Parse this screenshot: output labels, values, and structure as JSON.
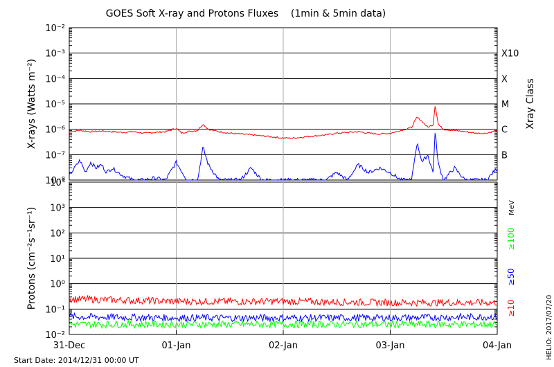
{
  "title": "GOES Soft X-ray and Protons Fluxes    (1min & 5min data)",
  "start_date_label": "Start Date: 2014/12/31 00:00 UT",
  "credit_label": "HELIO: 2017/07/20",
  "colors": {
    "xray_long": "#ff0000",
    "xray_short": "#0000ff",
    "p10": "#ff0000",
    "p50": "#0000ff",
    "p100": "#00ff00",
    "grid": "#000000",
    "day_grid": "#aaaaaa"
  },
  "chart_data": [
    {
      "type": "line",
      "title": "",
      "xlabel": "",
      "ylabel": "X-rays (Watts m⁻²)",
      "y_scale": "log",
      "ylim": [
        1e-08,
        0.01
      ],
      "y_ticks": [
        "10⁻⁸",
        "10⁻⁷",
        "10⁻⁶",
        "10⁻⁵",
        "10⁻⁴",
        "10⁻³",
        "10⁻²"
      ],
      "right_axis_label": "Xray Class",
      "class_labels": [
        {
          "label": "B",
          "value": 1e-07
        },
        {
          "label": "C",
          "value": 1e-06
        },
        {
          "label": "M",
          "value": 1e-05
        },
        {
          "label": "X",
          "value": 0.0001
        },
        {
          "label": "X10",
          "value": 0.001
        }
      ],
      "x_ticks": [
        "31-Dec",
        "01-Jan",
        "02-Jan",
        "03-Jan",
        "04-Jan"
      ],
      "x_range_days": [
        0,
        4
      ],
      "series": [
        {
          "color": "#ff0000",
          "x": [
            0,
            0.1,
            0.2,
            0.3,
            0.4,
            0.5,
            0.6,
            0.7,
            0.8,
            0.9,
            1.0,
            1.05,
            1.1,
            1.2,
            1.25,
            1.3,
            1.4,
            1.5,
            1.6,
            1.7,
            1.8,
            1.9,
            2.0,
            2.1,
            2.2,
            2.3,
            2.4,
            2.5,
            2.6,
            2.7,
            2.8,
            2.9,
            3.0,
            3.1,
            3.2,
            3.25,
            3.3,
            3.35,
            3.4,
            3.42,
            3.45,
            3.5,
            3.6,
            3.7,
            3.8,
            3.9,
            4.0
          ],
          "values": [
            8e-07,
            9e-07,
            8e-07,
            8.5e-07,
            8e-07,
            7.5e-07,
            8e-07,
            7e-07,
            7.5e-07,
            8e-07,
            1.1e-06,
            7e-07,
            8e-07,
            9e-07,
            1.6e-06,
            1e-06,
            8e-07,
            7e-07,
            6.5e-07,
            6e-07,
            5.5e-07,
            5e-07,
            4.5e-07,
            4.5e-07,
            5e-07,
            5.5e-07,
            6e-07,
            7e-07,
            7.5e-07,
            8e-07,
            7e-07,
            6.5e-07,
            7e-07,
            9e-07,
            1.2e-06,
            3e-06,
            2e-06,
            1.2e-06,
            1.5e-06,
            9e-06,
            1.5e-06,
            1e-06,
            9e-07,
            8e-07,
            7e-07,
            7e-07,
            9e-07
          ]
        },
        {
          "color": "#0000ff",
          "x": [
            0,
            0.05,
            0.1,
            0.15,
            0.2,
            0.25,
            0.3,
            0.35,
            0.4,
            0.5,
            0.6,
            0.7,
            0.8,
            0.9,
            1.0,
            1.1,
            1.2,
            1.25,
            1.3,
            1.4,
            1.5,
            1.6,
            1.7,
            1.8,
            1.9,
            2.0,
            2.2,
            2.4,
            2.5,
            2.6,
            2.7,
            2.8,
            2.9,
            3.0,
            3.1,
            3.2,
            3.25,
            3.3,
            3.35,
            3.4,
            3.42,
            3.45,
            3.5,
            3.6,
            3.7,
            3.8,
            3.9,
            4.0
          ],
          "values": [
            1.5e-08,
            3e-08,
            6e-08,
            2e-08,
            5e-08,
            3e-08,
            4e-08,
            2e-08,
            3e-08,
            1.5e-08,
            1e-08,
            1e-08,
            1.2e-08,
            1e-08,
            5e-08,
            1e-08,
            1e-08,
            2e-07,
            4e-08,
            1e-08,
            1e-08,
            1e-08,
            3e-08,
            1e-08,
            1e-08,
            1e-08,
            1e-08,
            1e-08,
            2e-08,
            1e-08,
            4e-08,
            2e-08,
            3e-08,
            2e-08,
            1e-08,
            1e-08,
            3e-07,
            5e-08,
            1e-07,
            2e-08,
            8e-07,
            4e-08,
            1e-08,
            3e-08,
            1e-08,
            1e-08,
            1e-08,
            3e-08
          ]
        }
      ]
    },
    {
      "type": "line",
      "title": "",
      "xlabel": "",
      "ylabel": "Protons (cm⁻²s⁻¹sr⁻¹)",
      "y_scale": "log",
      "ylim": [
        0.01,
        10000
      ],
      "y_ticks": [
        "10⁻²",
        "10⁻¹",
        "10⁰",
        "10¹",
        "10²",
        "10³",
        "10⁴"
      ],
      "threshold_line": 10,
      "right_axis_label": "MeV",
      "energy_labels": [
        {
          "label": "≥100",
          "color": "#00ff00"
        },
        {
          "label": "≥50",
          "color": "#0000ff"
        },
        {
          "label": "≥10",
          "color": "#ff0000"
        }
      ],
      "x_ticks": [
        "31-Dec",
        "01-Jan",
        "02-Jan",
        "03-Jan",
        "04-Jan"
      ],
      "x_range_days": [
        0,
        4
      ],
      "series": [
        {
          "color": "#ff0000",
          "x": [
            0,
            1,
            2,
            3,
            4
          ],
          "values": [
            0.25,
            0.2,
            0.2,
            0.18,
            0.18
          ]
        },
        {
          "color": "#0000ff",
          "x": [
            0,
            1,
            2,
            3,
            4
          ],
          "values": [
            0.05,
            0.045,
            0.045,
            0.045,
            0.05
          ]
        },
        {
          "color": "#00ff00",
          "x": [
            0,
            1,
            2,
            3,
            4
          ],
          "values": [
            0.025,
            0.025,
            0.025,
            0.025,
            0.025
          ]
        }
      ]
    }
  ]
}
